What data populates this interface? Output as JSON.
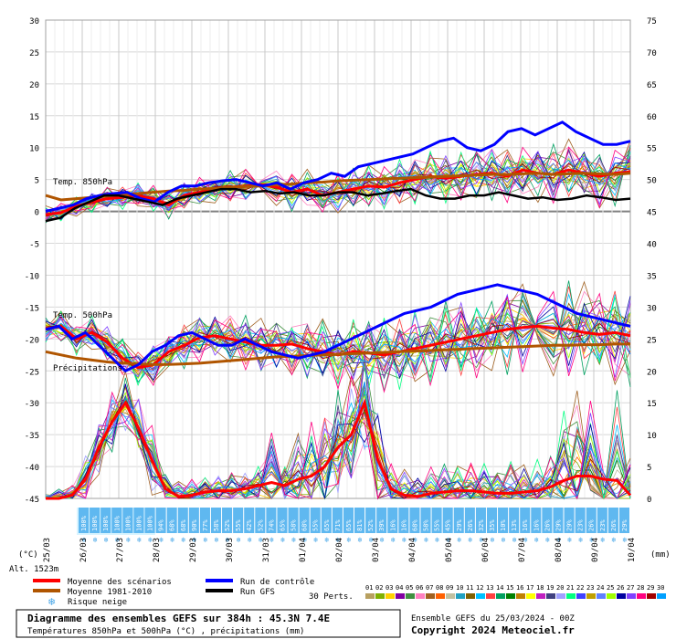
{
  "chart_data": {
    "type": "line",
    "left_axis": {
      "unit": "(°C)",
      "ticks": [
        30,
        25,
        20,
        15,
        10,
        5,
        0,
        -5,
        -10,
        -15,
        -20,
        -25,
        -30,
        -35,
        -40,
        -45
      ],
      "ylim": [
        -45,
        30
      ]
    },
    "right_axis": {
      "unit": "(mm)",
      "ticks": [
        75,
        70,
        65,
        60,
        55,
        50,
        45,
        40,
        35,
        30,
        25,
        20,
        15,
        10,
        5,
        0
      ]
    },
    "dates": [
      "25/03",
      "26/03",
      "27/03",
      "28/03",
      "29/03",
      "30/03",
      "31/03",
      "01/04",
      "02/04",
      "03/04",
      "04/04",
      "05/04",
      "06/04",
      "07/04",
      "08/04",
      "09/04",
      "10/04"
    ],
    "section_labels": {
      "t850": "Temp. 850hPa",
      "t500": "Temp. 500hPa",
      "precip": "Précipitations"
    },
    "altitude": "Alt. 1523m",
    "snow_risk_pct": [
      "100%",
      "100%",
      "100%",
      "100%",
      "100%",
      "100%",
      "100%",
      "94%",
      "68%",
      "68%",
      "90%",
      "77%",
      "58%",
      "52%",
      "55%",
      "42%",
      "52%",
      "74%",
      "65%",
      "58%",
      "68%",
      "55%",
      "65%",
      "71%",
      "65%",
      "81%",
      "52%",
      "39%",
      "16%",
      "16%",
      "68%",
      "58%",
      "55%",
      "45%",
      "29%",
      "26%",
      "32%",
      "35%",
      "10%",
      "13%",
      "16%",
      "16%",
      "26%",
      "29%",
      "29%",
      "23%",
      "26%",
      "23%",
      "26%",
      "29%"
    ],
    "series": [
      {
        "name": "Moyenne des scénarios",
        "color": "#ff0000",
        "t850": [
          -0.5,
          -0.2,
          0.8,
          1.5,
          2,
          2.2,
          2.5,
          2,
          1,
          2.5,
          3,
          3.5,
          3.8,
          4,
          4.2,
          3.8,
          3,
          3.5,
          2.5,
          3,
          3.5,
          4,
          3.8,
          4.5,
          5,
          5.5,
          5.2,
          5.5,
          5.8,
          6,
          5.5,
          6.5,
          6,
          5.8,
          6.5,
          6,
          5.5,
          6,
          6.2
        ],
        "t500": [
          -18.5,
          -18,
          -20,
          -19,
          -20.5,
          -23,
          -24.5,
          -24,
          -22,
          -21,
          -19.8,
          -19.5,
          -20,
          -20.5,
          -21,
          -21,
          -20.8,
          -21.5,
          -22,
          -22.5,
          -22,
          -22.2,
          -22.5,
          -22,
          -21.5,
          -21,
          -20.5,
          -20,
          -19.5,
          -19,
          -18.5,
          -18.2,
          -18,
          -18.3,
          -18.5,
          -19,
          -19.3,
          -19,
          -19.5
        ],
        "precip": [
          0,
          0,
          0.5,
          3,
          8,
          12,
          15,
          11,
          6,
          1.5,
          0.3,
          0.5,
          1,
          1.2,
          1.2,
          1.5,
          2,
          2.5,
          2,
          3,
          3.5,
          5,
          8,
          10,
          15,
          6,
          1.5,
          0.5,
          0.3,
          0.8,
          1,
          1.2,
          1.2,
          1,
          0.8,
          0.8,
          1,
          1.2,
          1.8,
          2.8,
          3.5,
          3.5,
          3,
          2.8,
          0.5
        ]
      },
      {
        "name": "Moyenne 1981-2010",
        "color": "#b05500",
        "t850": [
          2.5,
          1.8,
          2,
          2.2,
          2.4,
          2.6,
          2.8,
          3,
          3.2,
          3.3,
          3.5,
          3.6,
          3.8,
          3.9,
          4,
          4.2,
          4.3,
          4.5,
          4.6,
          4.8,
          4.9,
          5,
          5.1,
          5.2,
          5.3,
          5.4,
          5.5,
          5.6,
          5.7,
          5.8,
          5.8,
          5.9,
          6,
          5.8,
          5.9,
          6,
          5.9,
          5.8,
          6
        ],
        "t500": [
          -22,
          -22.5,
          -23,
          -23.3,
          -23.6,
          -23.8,
          -23.9,
          -24,
          -24,
          -23.9,
          -23.8,
          -23.6,
          -23.4,
          -23.2,
          -23,
          -22.8,
          -22.7,
          -22.6,
          -22.5,
          -22.4,
          -22.3,
          -22.2,
          -22.1,
          -22,
          -21.9,
          -21.8,
          -21.7,
          -21.6,
          -21.5,
          -21.4,
          -21.3,
          -21.2,
          -21.1,
          -21,
          -21,
          -20.9,
          -20.9,
          -20.8,
          -20.8
        ]
      },
      {
        "name": "Run de contrôle",
        "color": "#0000ff",
        "t850": [
          0,
          0.5,
          1,
          2,
          2.5,
          2.8,
          3,
          2,
          1.5,
          3,
          4,
          4,
          4.5,
          4.8,
          5,
          4.5,
          4,
          4.5,
          3.5,
          4.5,
          5,
          6,
          5.5,
          7,
          7.5,
          8,
          8.5,
          9,
          10,
          11,
          11.5,
          10,
          9.5,
          10.5,
          12.5,
          13,
          12,
          13,
          14,
          12.5,
          11.5,
          10.5,
          10.5,
          11
        ],
        "t500": [
          -18.5,
          -18,
          -20,
          -19,
          -21,
          -23,
          -25,
          -24,
          -22,
          -21,
          -19.5,
          -19,
          -20,
          -21,
          -21,
          -20,
          -21,
          -22,
          -22.5,
          -23,
          -22.5,
          -22,
          -21,
          -20,
          -19,
          -18,
          -17,
          -16,
          -15.5,
          -15,
          -14,
          -13,
          -12.5,
          -12,
          -11.5,
          -12,
          -12.5,
          -13,
          -14,
          -15,
          -16,
          -16.5,
          -17,
          -17.5,
          -18
        ]
      },
      {
        "name": "Run GFS",
        "color": "#000000",
        "t850": [
          -1.5,
          -1,
          0.5,
          1.5,
          2.5,
          2.5,
          2,
          1.5,
          1,
          2,
          2.5,
          3,
          3.5,
          3.5,
          3,
          3.2,
          2.8,
          3,
          2.5,
          2.5,
          3,
          3,
          2.5,
          2.8,
          3.2,
          3.5,
          2.5,
          2,
          2,
          2.5,
          2.5,
          3,
          2.5,
          2,
          2.2,
          1.8,
          2,
          2.5,
          2.2,
          1.8,
          2
        ]
      }
    ],
    "legend": {
      "mean": "Moyenne des scénarios",
      "climo": "Moyenne 1981-2010",
      "control": "Run de contrôle",
      "gfs": "Run GFS",
      "snow": "Risque neige",
      "perts_label": "30 Perts.",
      "pert_numbers": [
        "01",
        "02",
        "03",
        "04",
        "05",
        "06",
        "07",
        "08",
        "09",
        "10",
        "11",
        "12",
        "13",
        "14",
        "15",
        "16",
        "17",
        "18",
        "19",
        "20",
        "21",
        "22",
        "23",
        "24",
        "25",
        "26",
        "27",
        "28",
        "29",
        "30"
      ],
      "pert_colors": [
        "#b8a060",
        "#80b000",
        "#ffd000",
        "#8000a0",
        "#409040",
        "#ff80c0",
        "#a06020",
        "#ff6000",
        "#c0c0a0",
        "#20a0c0",
        "#806000",
        "#00c0ff",
        "#ff4040",
        "#00a060",
        "#008000",
        "#c08000",
        "#ffff00",
        "#c020c0",
        "#404080",
        "#a0a0ff",
        "#00ff80",
        "#4040ff",
        "#c0a000",
        "#6080ff",
        "#a0ff00",
        "#0000a0",
        "#8040ff",
        "#ff0080",
        "#a00000",
        "#00a0ff"
      ]
    },
    "footer": {
      "title": "Diagramme des ensembles GEFS sur 384h : 45.3N 7.4E",
      "subtitle": "Températures 850hPa et 500hPa (°C) , précipitations (mm)",
      "run": "Ensemble GEFS du 25/03/2024 - 00Z",
      "copyright": "Copyright 2024 Meteociel.fr"
    }
  }
}
